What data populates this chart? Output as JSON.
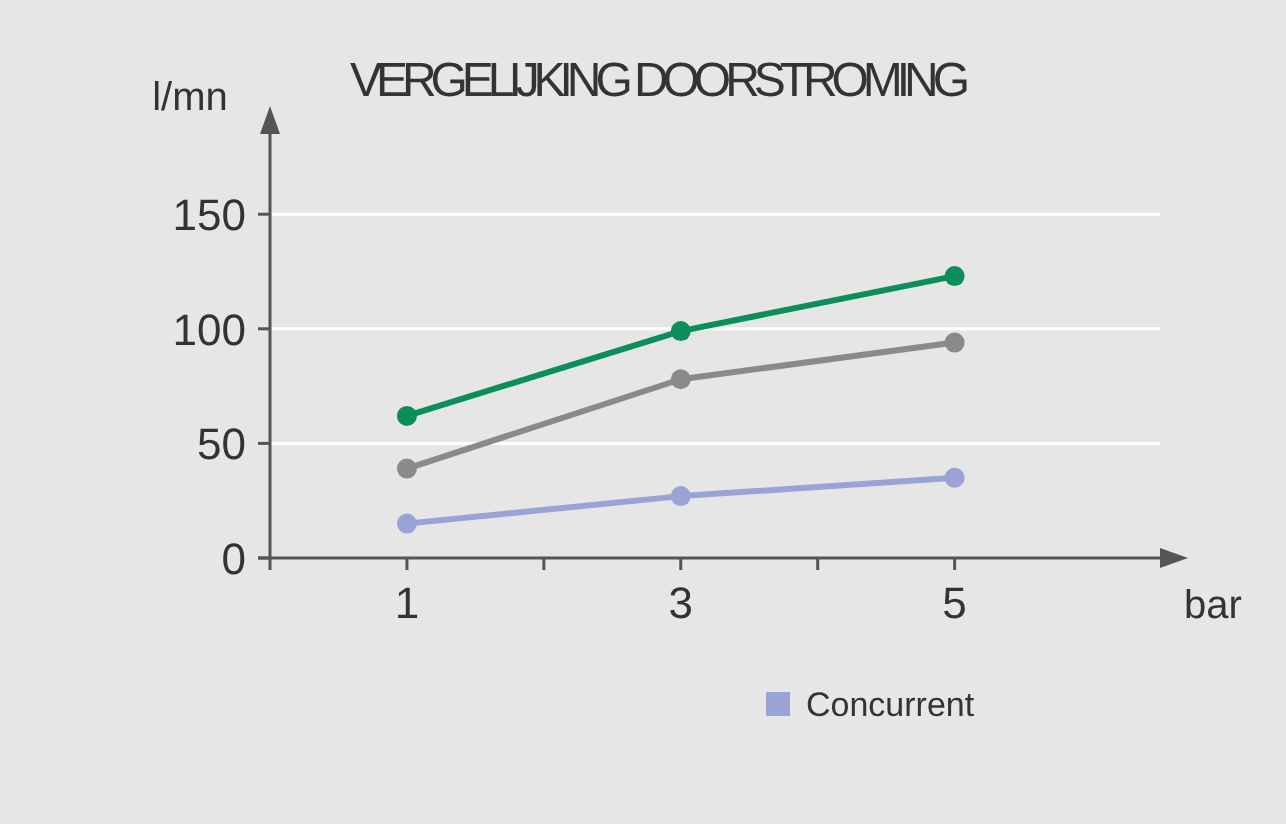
{
  "chart_data": {
    "type": "line",
    "title": "VERGELIJKING DOORSTROMING",
    "xlabel": "bar",
    "ylabel": "l/mn",
    "x": [
      1,
      3,
      5
    ],
    "series": [
      {
        "name": "Concurrent",
        "color": "#99a3d6",
        "values": [
          15,
          27,
          35
        ]
      },
      {
        "color": "#8a8a8a",
        "values": [
          39,
          78,
          94
        ]
      },
      {
        "color": "#0a8f5a",
        "values": [
          62,
          99,
          123
        ]
      }
    ],
    "xlim": [
      0,
      6.5
    ],
    "xticks": [
      {
        "value": 0,
        "label": null
      },
      1,
      {
        "value": 2,
        "label": null
      },
      3,
      {
        "value": 4,
        "label": null
      },
      5
    ],
    "ylim": [
      0,
      185
    ],
    "yticks": [
      0,
      50,
      100,
      150
    ],
    "grid": "y",
    "legend": "bottom",
    "marker": "circle",
    "line_style": "solid"
  }
}
